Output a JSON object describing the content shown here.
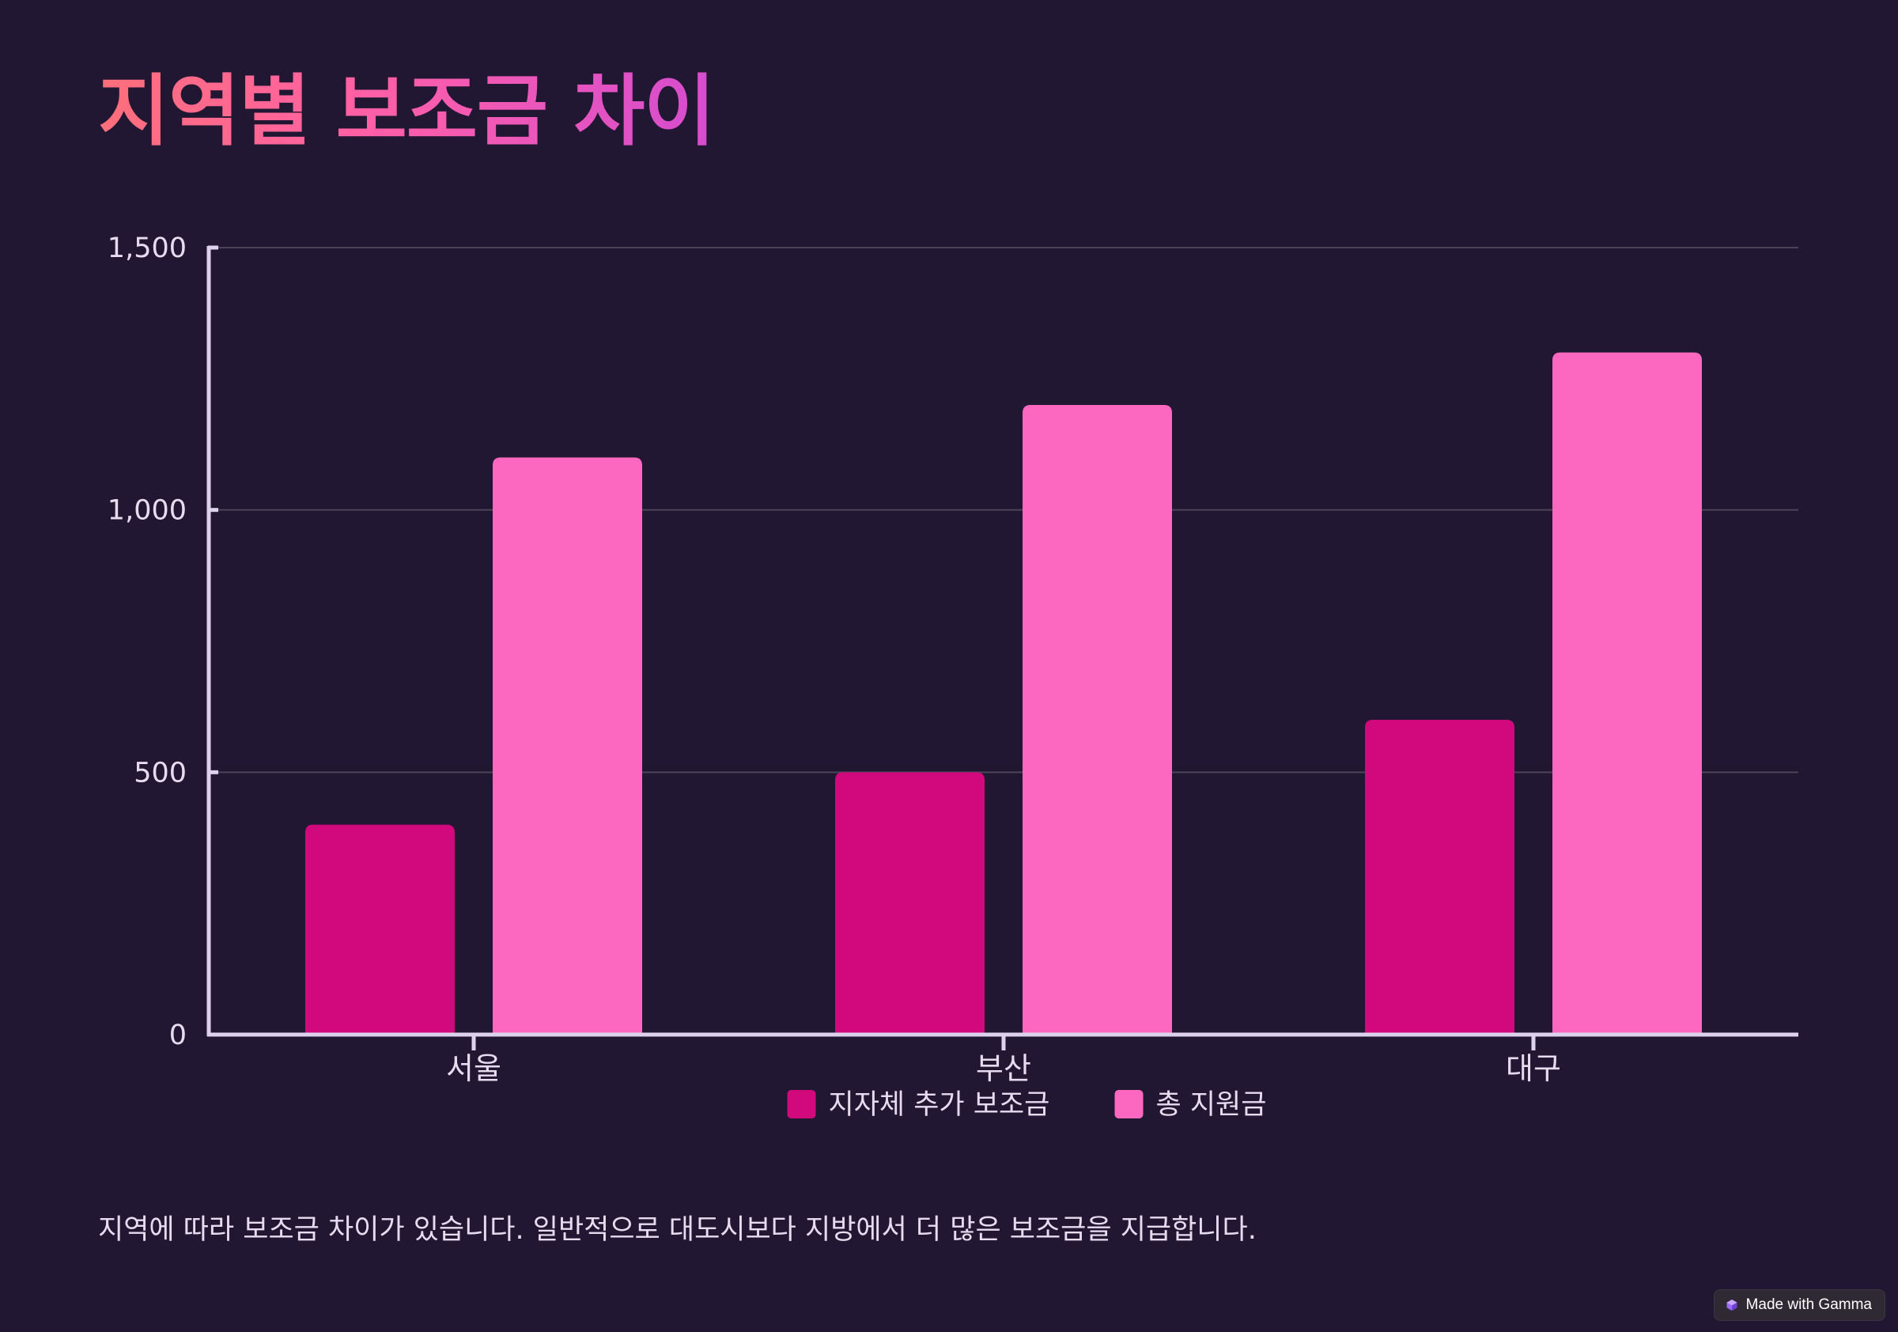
{
  "title": "지역별 보조금 차이",
  "caption": "지역에 따라 보조금 차이가 있습니다. 일반적으로 대도시보다 지방에서 더 많은 보조금을 지급합니다.",
  "badge": {
    "label": "Made with Gamma",
    "icon": "gamma-logo-icon"
  },
  "colors": {
    "background": "#221733",
    "series_1": "#d1097c",
    "series_2": "#fc68bf",
    "axis": "#ddd2ee",
    "grid": "#4b4358",
    "text": "#e7dcef"
  },
  "chart_data": {
    "type": "bar",
    "title": "",
    "xlabel": "",
    "ylabel": "",
    "categories": [
      "서울",
      "부산",
      "대구"
    ],
    "series": [
      {
        "name": "지자체 추가 보조금",
        "values": [
          400,
          500,
          600
        ]
      },
      {
        "name": "총 지원금",
        "values": [
          1100,
          1200,
          1300
        ]
      }
    ],
    "ylim": [
      0,
      1500
    ],
    "yticks": [
      0,
      500,
      1000,
      1500
    ],
    "ytick_labels": [
      "0",
      "500",
      "1,000",
      "1,500"
    ],
    "grid": true,
    "legend_position": "bottom"
  }
}
